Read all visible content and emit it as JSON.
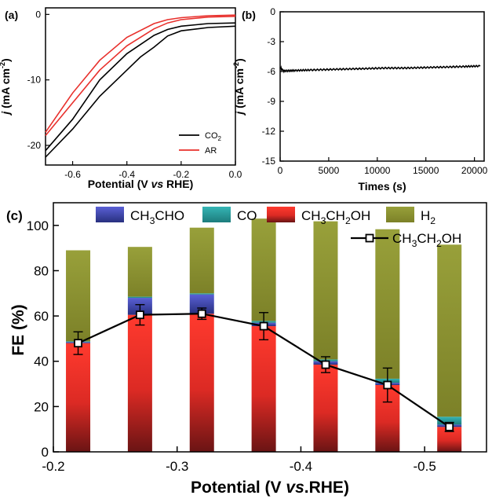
{
  "panels": {
    "a": {
      "label": "(a)"
    },
    "b": {
      "label": "(b)"
    },
    "c": {
      "label": "(c)"
    }
  },
  "chart_data": [
    {
      "panel": "a",
      "type": "line",
      "xlabel": "Potential (V vs RHE)",
      "ylabel": "j (mA cm-2)",
      "xlim": [
        -0.7,
        0.0
      ],
      "ylim": [
        -23,
        1
      ],
      "xticks": [
        -0.6,
        -0.4,
        -0.2,
        0.0
      ],
      "xtick_labels": [
        "-0.6",
        "-0.4",
        "-0.2",
        "0.0"
      ],
      "yticks": [
        0,
        -10,
        -20
      ],
      "ytick_labels": [
        "0",
        "-10",
        "-20"
      ],
      "legend": {
        "position": "bottom-right",
        "entries": [
          "CO2",
          "AR"
        ]
      },
      "series": [
        {
          "name": "CO2",
          "color": "#000000",
          "sweeps": [
            {
              "x": [
                -0.7,
                -0.6,
                -0.5,
                -0.4,
                -0.35,
                -0.3,
                -0.25,
                -0.2,
                -0.1,
                0.0
              ],
              "y": [
                -21.8,
                -17.5,
                -12.5,
                -8.5,
                -6.5,
                -5.0,
                -3.3,
                -2.5,
                -2.0,
                -1.8
              ]
            },
            {
              "x": [
                -0.7,
                -0.6,
                -0.5,
                -0.4,
                -0.3,
                -0.25,
                -0.2,
                -0.1,
                0.0
              ],
              "y": [
                -20.8,
                -16.0,
                -10.0,
                -6.0,
                -3.2,
                -2.3,
                -1.8,
                -1.4,
                -1.3
              ]
            }
          ]
        },
        {
          "name": "AR",
          "color": "#e8302c",
          "sweeps": [
            {
              "x": [
                -0.7,
                -0.6,
                -0.5,
                -0.4,
                -0.3,
                -0.25,
                -0.2,
                -0.1,
                0.0
              ],
              "y": [
                -18.5,
                -13.5,
                -8.5,
                -4.8,
                -2.2,
                -1.3,
                -0.8,
                -0.4,
                -0.3
              ]
            },
            {
              "x": [
                -0.7,
                -0.6,
                -0.5,
                -0.4,
                -0.3,
                -0.25,
                -0.2,
                -0.1,
                0.0
              ],
              "y": [
                -18.0,
                -12.0,
                -7.0,
                -3.5,
                -1.4,
                -0.8,
                -0.5,
                -0.2,
                -0.1
              ]
            }
          ]
        }
      ]
    },
    {
      "panel": "b",
      "type": "line",
      "xlabel": "Times (s)",
      "ylabel": "j (mA cm-2)",
      "xlim": [
        0,
        21000
      ],
      "ylim": [
        -15,
        0
      ],
      "xticks": [
        0,
        5000,
        10000,
        15000,
        20000
      ],
      "xtick_labels": [
        "0",
        "5000",
        "10000",
        "15000",
        "20000"
      ],
      "yticks": [
        0,
        -3,
        -6,
        -9,
        -12,
        -15
      ],
      "ytick_labels": [
        "0",
        "-3",
        "-6",
        "-9",
        "-12",
        "-15"
      ],
      "series": [
        {
          "color": "#000000",
          "x": [
            0,
            400,
            1500,
            3000,
            5000,
            7000,
            9000,
            11000,
            13000,
            15000,
            17000,
            19000,
            20600
          ],
          "y": [
            -5.6,
            -5.95,
            -5.9,
            -5.85,
            -5.8,
            -5.75,
            -5.7,
            -5.65,
            -5.65,
            -5.6,
            -5.55,
            -5.5,
            -5.45
          ]
        }
      ]
    },
    {
      "panel": "c",
      "type": "bar",
      "stacked": true,
      "xlabel": "Potential (V vs.RHE)",
      "ylabel": "FE (%)",
      "xlim": [
        -0.2,
        -0.55
      ],
      "ylim": [
        0,
        110
      ],
      "xticks": [
        -0.2,
        -0.3,
        -0.4,
        -0.5
      ],
      "xtick_labels": [
        "-0.2",
        "-0.3",
        "-0.4",
        "-0.5"
      ],
      "yticks": [
        0,
        20,
        40,
        60,
        80,
        100
      ],
      "ytick_labels": [
        "0",
        "20",
        "40",
        "60",
        "80",
        "100"
      ],
      "x": [
        -0.22,
        -0.27,
        -0.32,
        -0.37,
        -0.42,
        -0.47,
        -0.52
      ],
      "series": [
        {
          "name": "CH3CH2OH",
          "color": "#e8302c",
          "values": [
            48,
            60.5,
            61,
            55.5,
            38.5,
            29.5,
            11
          ]
        },
        {
          "name": "CH3CHO",
          "color": "#3a3ea0",
          "values": [
            0.5,
            7.5,
            8.5,
            1.5,
            1.5,
            1.0,
            1.0
          ]
        },
        {
          "name": "CO",
          "color": "#2a9a9a",
          "values": [
            0.3,
            0.5,
            0.5,
            0.8,
            0.8,
            1.8,
            3.5
          ]
        },
        {
          "name": "H2",
          "color": "#8e9332",
          "values": [
            40.2,
            22.0,
            29.0,
            45.2,
            61.0,
            66.0,
            76.0
          ]
        }
      ],
      "line": {
        "name": "CH3CH2OH",
        "color": "#000000",
        "values": [
          48,
          60.5,
          61,
          55.5,
          38.5,
          29.5,
          11
        ],
        "errors": [
          5,
          4.5,
          2.5,
          6,
          3.5,
          7.5,
          2
        ]
      },
      "legend": {
        "entries": [
          {
            "text": "CH3CHO",
            "base": "CH",
            "sub1": "3",
            "mid": "CHO",
            "sub2": "",
            "tail": ""
          },
          {
            "text": "CO",
            "base": "CO",
            "sub1": "",
            "mid": "",
            "sub2": "",
            "tail": ""
          },
          {
            "text": "CH3CH2OH",
            "base": "CH",
            "sub1": "3",
            "mid": "CH",
            "sub2": "2",
            "tail": "OH"
          },
          {
            "text": "H2",
            "base": "H",
            "sub1": "2",
            "mid": "",
            "sub2": "",
            "tail": ""
          }
        ],
        "line_entry": {
          "base": "CH",
          "sub1": "3",
          "mid": "CH",
          "sub2": "2",
          "tail": "OH"
        }
      }
    }
  ]
}
